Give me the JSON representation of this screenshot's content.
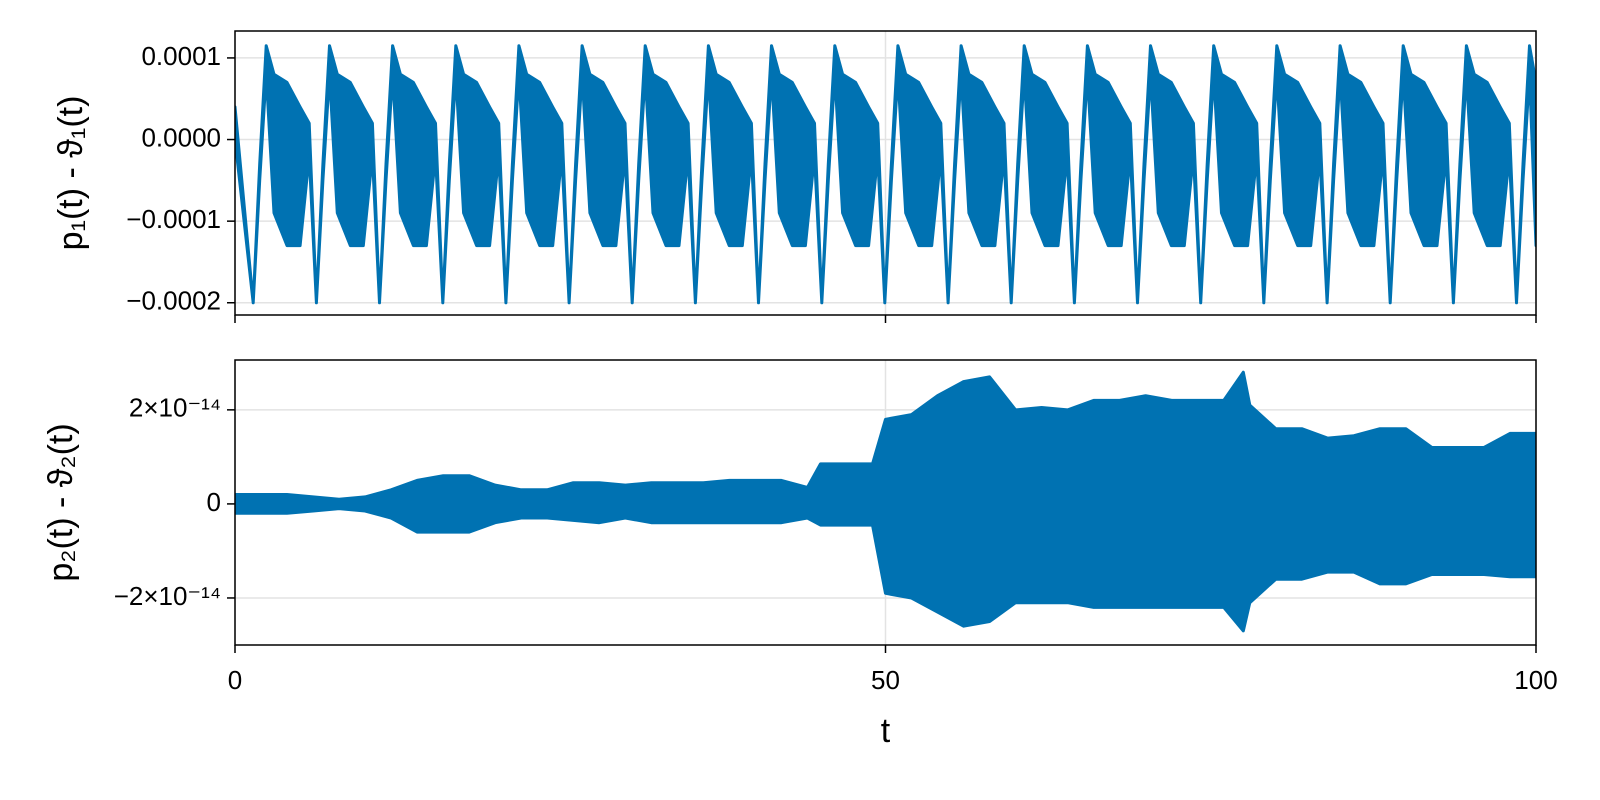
{
  "chart_data": [
    {
      "type": "band",
      "ylabel": "p₁(t) - ϑ₁(t)",
      "color": "#0072b2",
      "grid": true,
      "show_xtick_labels": false,
      "xlim": [
        0,
        100
      ],
      "xticks": [
        0,
        50,
        100
      ],
      "ylim": [
        -0.000215,
        0.000133
      ],
      "yticks": [
        {
          "value": -0.0002,
          "label": "−0.0002"
        },
        {
          "value": -0.0001,
          "label": "−0.0001"
        },
        {
          "value": 0,
          "label": "0.0000"
        },
        0.0001
      ],
      "x": [
        0,
        1.4,
        1.9,
        2.4,
        3.0,
        4.0,
        5.0,
        5.7,
        6.26,
        6.76,
        7.26,
        7.86,
        8.86,
        9.86,
        10.56,
        11.11,
        11.61,
        12.11,
        12.71,
        13.71,
        14.71,
        15.41,
        15.97,
        16.47,
        16.97,
        17.57,
        18.57,
        19.57,
        20.27,
        20.82,
        21.32,
        21.82,
        22.42,
        23.42,
        24.42,
        25.12,
        25.68,
        26.18,
        26.68,
        27.28,
        28.28,
        29.28,
        29.98,
        30.53,
        31.03,
        31.53,
        32.13,
        33.13,
        34.13,
        34.83,
        35.39,
        35.89,
        36.39,
        36.99,
        37.99,
        38.99,
        39.69,
        40.24,
        40.74,
        41.24,
        41.84,
        42.84,
        43.84,
        44.54,
        45.1,
        45.6,
        46.1,
        46.7,
        47.7,
        48.7,
        49.4,
        49.95,
        50.45,
        50.95,
        51.55,
        52.55,
        53.55,
        54.25,
        54.81,
        55.31,
        55.81,
        56.41,
        57.41,
        58.41,
        59.11,
        59.66,
        60.16,
        60.66,
        61.26,
        62.26,
        63.26,
        63.96,
        64.52,
        65.02,
        65.52,
        66.12,
        67.12,
        68.12,
        68.82,
        69.37,
        69.87,
        70.37,
        70.97,
        71.97,
        72.97,
        73.67,
        74.23,
        74.73,
        75.23,
        75.83,
        76.83,
        77.83,
        78.53,
        79.08,
        79.58,
        80.08,
        80.68,
        81.68,
        82.68,
        83.38,
        83.94,
        84.44,
        84.94,
        85.54,
        86.54,
        87.54,
        88.24,
        88.79,
        89.29,
        89.79,
        90.39,
        91.39,
        92.39,
        93.09,
        93.65,
        94.15,
        94.65,
        95.25,
        96.25,
        97.25,
        97.95,
        98.5,
        99.0,
        99.5,
        100
      ],
      "upper": [
        4e-05,
        -0.0002,
        -3e-05,
        0.000115,
        8e-05,
        7e-05,
        4e-05,
        2e-05,
        -0.0002,
        -3e-05,
        0.000115,
        8e-05,
        7e-05,
        4e-05,
        2e-05,
        -0.0002,
        -3e-05,
        0.000115,
        8e-05,
        7e-05,
        4e-05,
        2e-05,
        -0.0002,
        -3e-05,
        0.000115,
        8e-05,
        7e-05,
        4e-05,
        2e-05,
        -0.0002,
        -3e-05,
        0.000115,
        8e-05,
        7e-05,
        4e-05,
        2e-05,
        -0.0002,
        -3e-05,
        0.000115,
        8e-05,
        7e-05,
        4e-05,
        2e-05,
        -0.0002,
        -3e-05,
        0.000115,
        8e-05,
        7e-05,
        4e-05,
        2e-05,
        -0.0002,
        -3e-05,
        0.000115,
        8e-05,
        7e-05,
        4e-05,
        2e-05,
        -0.0002,
        -3e-05,
        0.000115,
        8e-05,
        7e-05,
        4e-05,
        2e-05,
        -0.0002,
        -3e-05,
        0.000115,
        8e-05,
        7e-05,
        4e-05,
        2e-05,
        -0.0002,
        -3e-05,
        0.000115,
        8e-05,
        7e-05,
        4e-05,
        2e-05,
        -0.0002,
        -3e-05,
        0.000115,
        8e-05,
        7e-05,
        4e-05,
        2e-05,
        -0.0002,
        -3e-05,
        0.000115,
        8e-05,
        7e-05,
        4e-05,
        2e-05,
        -0.0002,
        -3e-05,
        0.000115,
        8e-05,
        7e-05,
        4e-05,
        2e-05,
        -0.0002,
        -3e-05,
        0.000115,
        8e-05,
        7e-05,
        4e-05,
        2e-05,
        -0.0002,
        -3e-05,
        0.000115,
        8e-05,
        7e-05,
        4e-05,
        2e-05,
        -0.0002,
        -3e-05,
        0.000115,
        8e-05,
        7e-05,
        4e-05,
        2e-05,
        -0.0002,
        -3e-05,
        0.000115,
        8e-05,
        7e-05,
        4e-05,
        2e-05,
        -0.0002,
        -3e-05,
        0.000115,
        8e-05,
        7e-05,
        4e-05,
        2e-05,
        -0.0002,
        -3e-05,
        0.000115,
        8e-05,
        7e-05,
        4e-05,
        2e-05,
        -0.0002,
        -3e-05,
        0.000115,
        7e-05
      ],
      "lower": [
        0,
        -0.0002,
        -5e-05,
        8e-05,
        -9e-05,
        -0.00013,
        -0.00013,
        -2e-05,
        -0.0002,
        -5e-05,
        8e-05,
        -9e-05,
        -0.00013,
        -0.00013,
        -2e-05,
        -0.0002,
        -5e-05,
        8e-05,
        -9e-05,
        -0.00013,
        -0.00013,
        -2e-05,
        -0.0002,
        -5e-05,
        8e-05,
        -9e-05,
        -0.00013,
        -0.00013,
        -2e-05,
        -0.0002,
        -5e-05,
        8e-05,
        -9e-05,
        -0.00013,
        -0.00013,
        -2e-05,
        -0.0002,
        -5e-05,
        8e-05,
        -9e-05,
        -0.00013,
        -0.00013,
        -2e-05,
        -0.0002,
        -5e-05,
        8e-05,
        -9e-05,
        -0.00013,
        -0.00013,
        -2e-05,
        -0.0002,
        -5e-05,
        8e-05,
        -9e-05,
        -0.00013,
        -0.00013,
        -2e-05,
        -0.0002,
        -5e-05,
        8e-05,
        -9e-05,
        -0.00013,
        -0.00013,
        -2e-05,
        -0.0002,
        -5e-05,
        8e-05,
        -9e-05,
        -0.00013,
        -0.00013,
        -2e-05,
        -0.0002,
        -5e-05,
        8e-05,
        -9e-05,
        -0.00013,
        -0.00013,
        -2e-05,
        -0.0002,
        -5e-05,
        8e-05,
        -9e-05,
        -0.00013,
        -0.00013,
        -2e-05,
        -0.0002,
        -5e-05,
        8e-05,
        -9e-05,
        -0.00013,
        -0.00013,
        -2e-05,
        -0.0002,
        -5e-05,
        8e-05,
        -9e-05,
        -0.00013,
        -0.00013,
        -2e-05,
        -0.0002,
        -5e-05,
        8e-05,
        -9e-05,
        -0.00013,
        -0.00013,
        -2e-05,
        -0.0002,
        -5e-05,
        8e-05,
        -9e-05,
        -0.00013,
        -0.00013,
        -2e-05,
        -0.0002,
        -5e-05,
        8e-05,
        -9e-05,
        -0.00013,
        -0.00013,
        -2e-05,
        -0.0002,
        -5e-05,
        8e-05,
        -9e-05,
        -0.00013,
        -0.00013,
        -2e-05,
        -0.0002,
        -5e-05,
        8e-05,
        -9e-05,
        -0.00013,
        -0.00013,
        -2e-05,
        -0.0002,
        -5e-05,
        8e-05,
        -9e-05,
        -0.00013,
        -0.00013,
        -2e-05,
        -0.0002,
        -5e-05,
        8e-05,
        -0.00013
      ]
    },
    {
      "type": "band",
      "ylabel": "p₂(t) - ϑ₂(t)",
      "xlabel": "t",
      "color": "#0072b2",
      "grid": true,
      "show_xtick_labels": true,
      "xlim": [
        0,
        100
      ],
      "xticks": [
        0,
        50,
        100
      ],
      "ylim": [
        -3e-14,
        3.06e-14
      ],
      "yticks": [
        {
          "value": -2e-14,
          "label": "−2×10⁻¹⁴"
        },
        0,
        {
          "value": 2e-14,
          "label": "2×10⁻¹⁴"
        }
      ],
      "x": [
        0,
        2,
        4,
        6,
        8,
        10,
        12,
        14,
        16,
        18,
        20,
        22,
        24,
        26,
        28,
        30,
        32,
        34,
        36,
        38,
        40,
        42,
        44,
        45,
        47,
        49,
        50,
        52,
        54,
        56,
        58,
        60,
        62,
        64,
        66,
        68,
        70,
        72,
        74,
        76,
        77.5,
        78,
        80,
        82,
        84,
        86,
        88,
        90,
        92,
        94,
        96,
        98,
        100
      ],
      "upper": [
        2e-15,
        2e-15,
        2e-15,
        1.5e-15,
        1e-15,
        1.5e-15,
        3e-15,
        5e-15,
        6e-15,
        6e-15,
        4e-15,
        3e-15,
        3e-15,
        4.5e-15,
        4.5e-15,
        4e-15,
        4.5e-15,
        4.5e-15,
        4.5e-15,
        5e-15,
        5e-15,
        5e-15,
        3.5e-15,
        8.5e-15,
        8.5e-15,
        8.5e-15,
        1.8e-14,
        1.9e-14,
        2.3e-14,
        2.6e-14,
        2.7e-14,
        2e-14,
        2.05e-14,
        2e-14,
        2.2e-14,
        2.2e-14,
        2.3e-14,
        2.2e-14,
        2.2e-14,
        2.2e-14,
        2.8e-14,
        2.1e-14,
        1.6e-14,
        1.6e-14,
        1.4e-14,
        1.45e-14,
        1.6e-14,
        1.6e-14,
        1.2e-14,
        1.2e-14,
        1.2e-14,
        1.5e-14,
        1.5e-14
      ],
      "lower": [
        -2e-15,
        -2e-15,
        -2e-15,
        -1.5e-15,
        -1e-15,
        -1.5e-15,
        -3e-15,
        -6e-15,
        -6e-15,
        -6e-15,
        -4e-15,
        -3e-15,
        -3e-15,
        -3.5e-15,
        -4e-15,
        -3e-15,
        -4e-15,
        -4e-15,
        -4e-15,
        -4e-15,
        -4e-15,
        -4e-15,
        -3e-15,
        -4.5e-15,
        -4.5e-15,
        -4.5e-15,
        -1.9e-14,
        -2e-14,
        -2.3e-14,
        -2.6e-14,
        -2.5e-14,
        -2.1e-14,
        -2.1e-14,
        -2.1e-14,
        -2.2e-14,
        -2.2e-14,
        -2.2e-14,
        -2.2e-14,
        -2.2e-14,
        -2.2e-14,
        -2.7e-14,
        -2.1e-14,
        -1.6e-14,
        -1.6e-14,
        -1.45e-14,
        -1.45e-14,
        -1.7e-14,
        -1.7e-14,
        -1.5e-14,
        -1.5e-14,
        -1.5e-14,
        -1.55e-14,
        -1.55e-14
      ]
    }
  ]
}
